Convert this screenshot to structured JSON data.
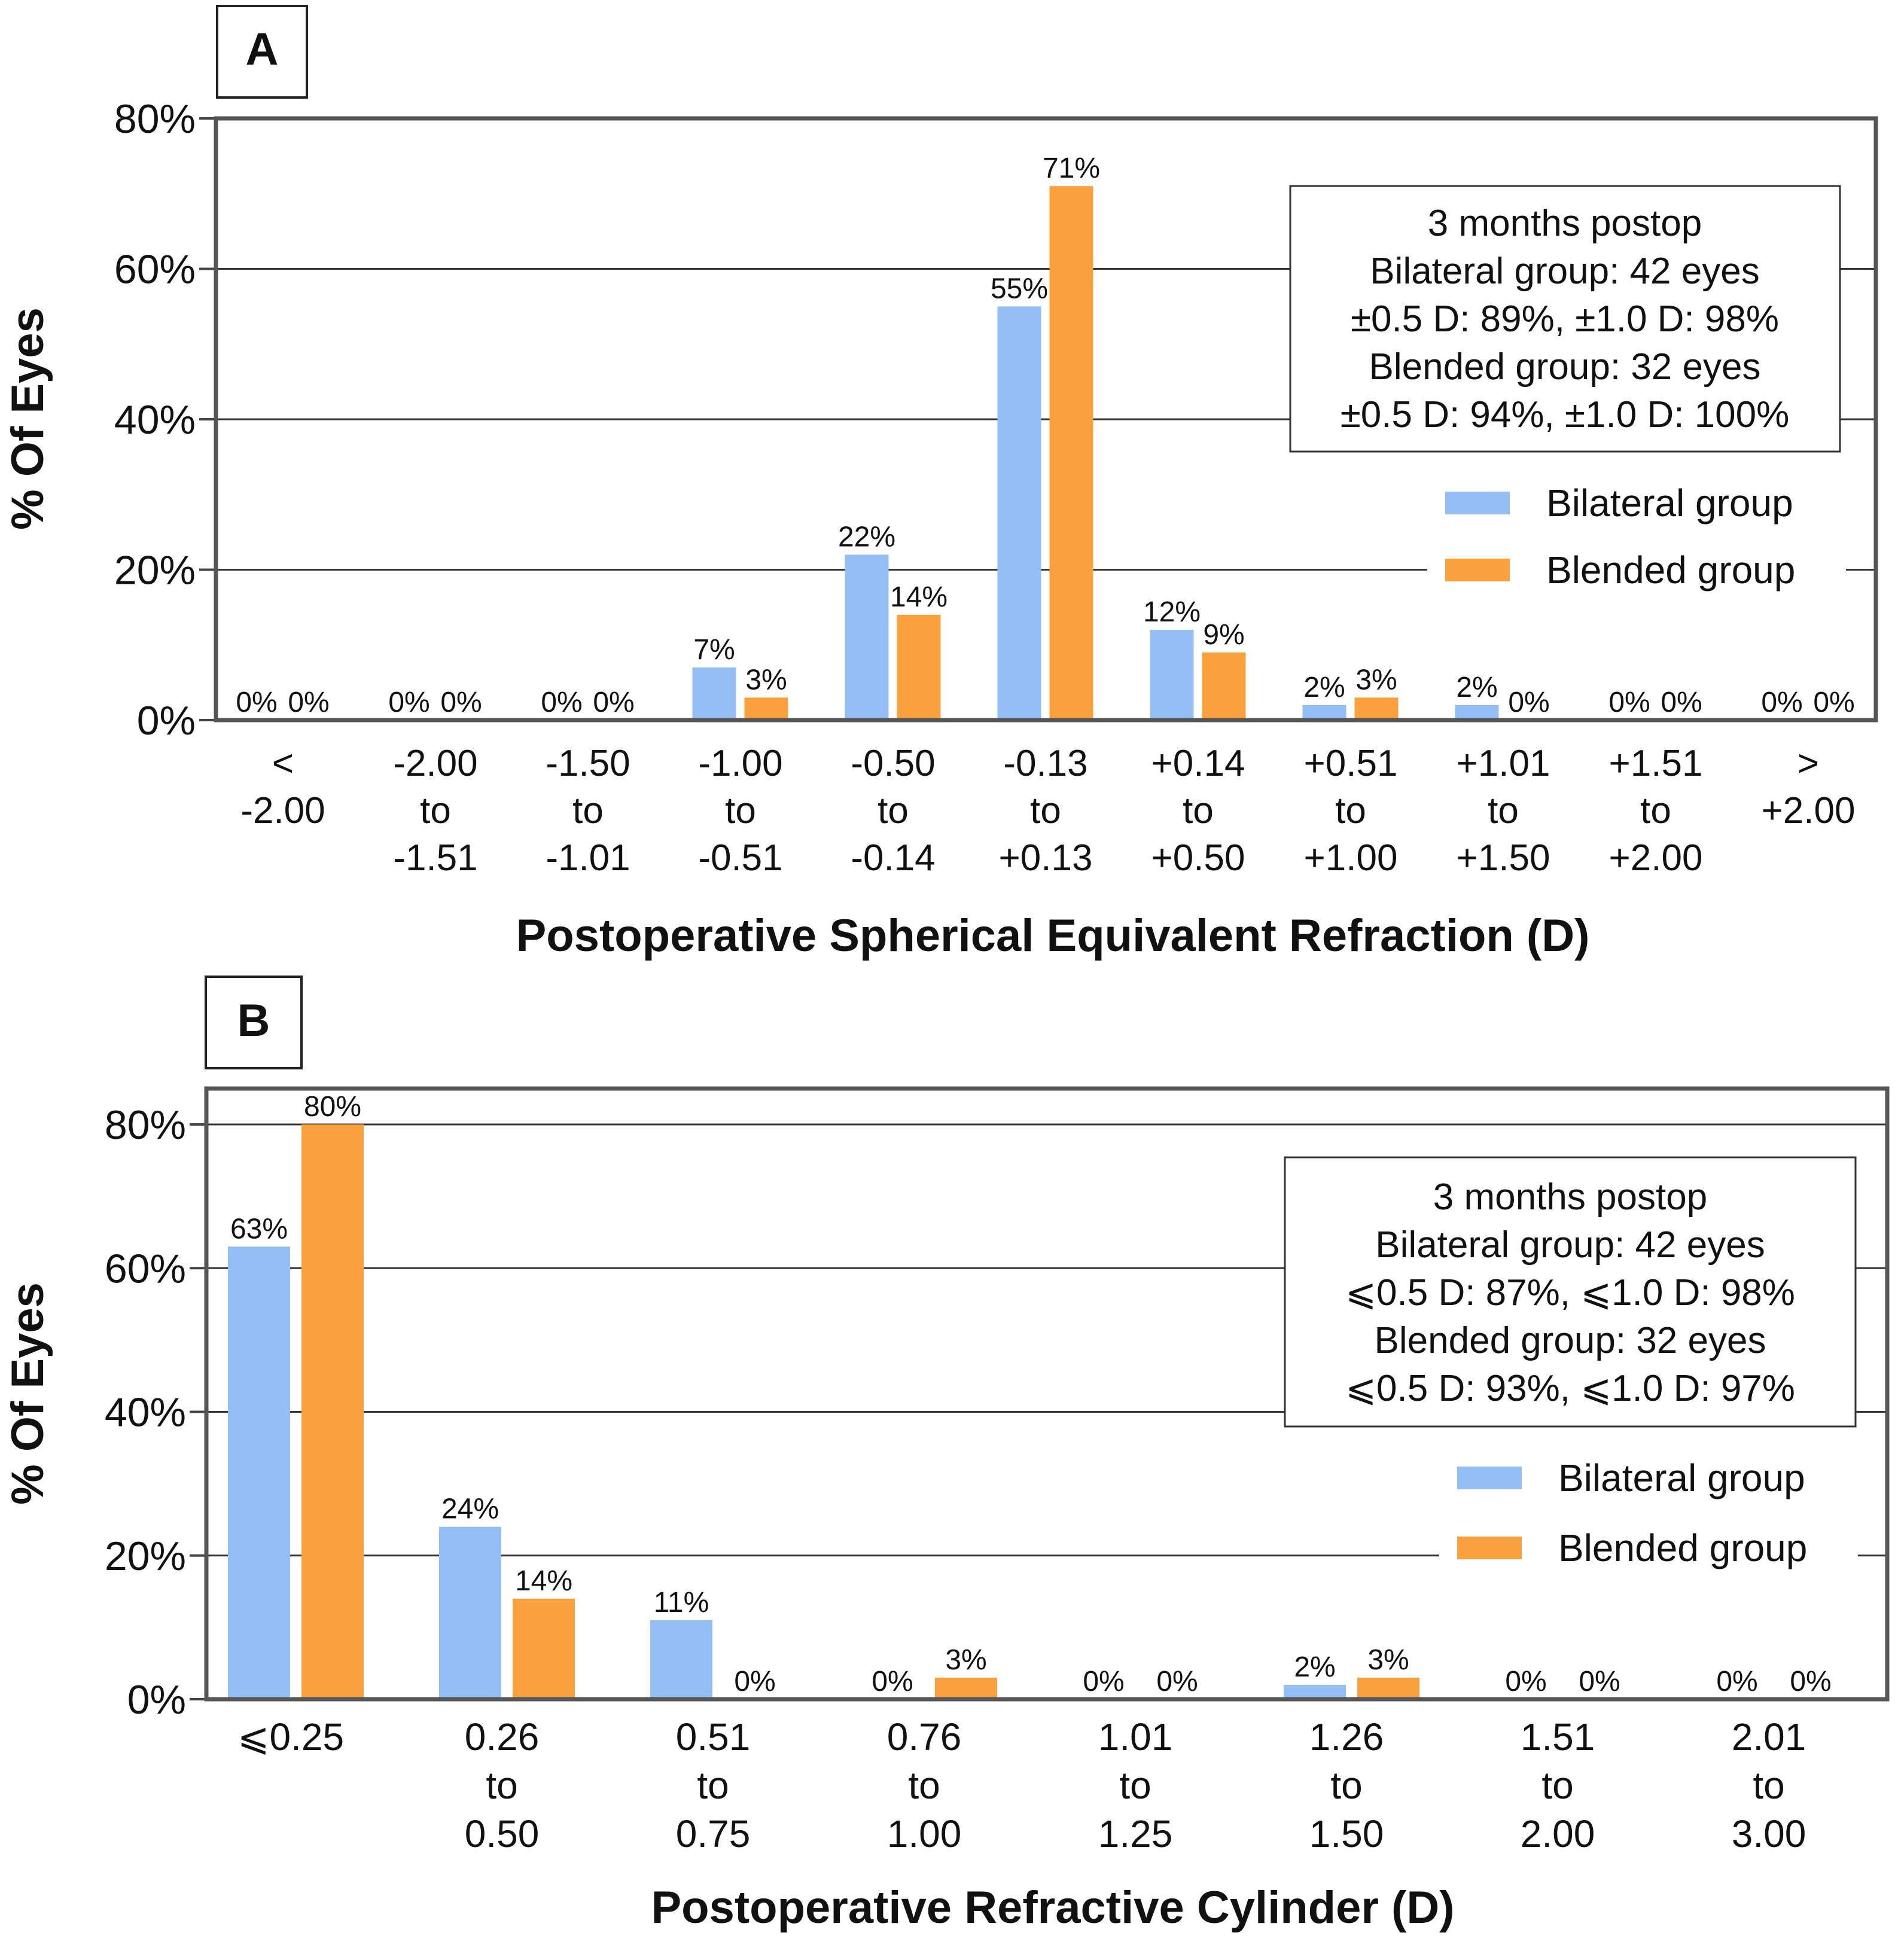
{
  "chart_data": [
    {
      "panel": "A",
      "type": "bar",
      "xlabel": "Postoperative Spherical Equivalent Refraction (D)",
      "ylabel": "% Of Eyes",
      "ylim": [
        0,
        80
      ],
      "yticks": [
        "0%",
        "20%",
        "40%",
        "60%",
        "80%"
      ],
      "grid": true,
      "legend_position": "right",
      "categories": [
        [
          "<",
          "-2.00"
        ],
        [
          "-2.00",
          "to",
          "-1.51"
        ],
        [
          "-1.50",
          "to",
          "-1.01"
        ],
        [
          "-1.00",
          "to",
          "-0.51"
        ],
        [
          "-0.50",
          "to",
          "-0.14"
        ],
        [
          "-0.13",
          "to",
          "+0.13"
        ],
        [
          "+0.14",
          "to",
          "+0.50"
        ],
        [
          "+0.51",
          "to",
          "+1.00"
        ],
        [
          "+1.01",
          "to",
          "+1.50"
        ],
        [
          "+1.51",
          "to",
          "+2.00"
        ],
        [
          ">",
          "+2.00"
        ]
      ],
      "series": [
        {
          "name": "Bilateral group",
          "color": "#93bff5",
          "values": [
            0,
            0,
            0,
            7,
            22,
            55,
            12,
            2,
            2,
            0,
            0
          ],
          "labels": [
            "0%",
            "0%",
            "0%",
            "7%",
            "22%",
            "55%",
            "12%",
            "2%",
            "2%",
            "0%",
            "0%"
          ]
        },
        {
          "name": "Blended group",
          "color": "#f9a03f",
          "values": [
            0,
            0,
            0,
            3,
            14,
            71,
            9,
            3,
            0,
            0,
            0
          ],
          "labels": [
            "0%",
            "0%",
            "0%",
            "3%",
            "14%",
            "71%",
            "9%",
            "3%",
            "0%",
            "0%",
            "0%"
          ]
        }
      ],
      "annotation": [
        "3 months postop",
        "Bilateral group: 42 eyes",
        "±0.5 D: 89%, ±1.0 D: 98%",
        "Blended group: 32 eyes",
        "±0.5 D: 94%, ±1.0 D: 100%"
      ]
    },
    {
      "panel": "B",
      "type": "bar",
      "xlabel": "Postoperative Refractive Cylinder (D)",
      "ylabel": "% Of Eyes",
      "ylim": [
        0,
        85
      ],
      "yticks": [
        "0%",
        "20%",
        "40%",
        "60%",
        "80%"
      ],
      "grid": true,
      "legend_position": "right",
      "categories": [
        [
          "⩽0.25"
        ],
        [
          "0.26",
          "to",
          "0.50"
        ],
        [
          "0.51",
          "to",
          "0.75"
        ],
        [
          "0.76",
          "to",
          "1.00"
        ],
        [
          "1.01",
          "to",
          "1.25"
        ],
        [
          "1.26",
          "to",
          "1.50"
        ],
        [
          "1.51",
          "to",
          "2.00"
        ],
        [
          "2.01",
          "to",
          "3.00"
        ]
      ],
      "series": [
        {
          "name": "Bilateral group",
          "color": "#93bff5",
          "values": [
            63,
            24,
            11,
            0,
            0,
            2,
            0,
            0
          ],
          "labels": [
            "63%",
            "24%",
            "11%",
            "0%",
            "0%",
            "2%",
            "0%",
            "0%"
          ]
        },
        {
          "name": "Blended group",
          "color": "#f9a03f",
          "values": [
            80,
            14,
            0,
            3,
            0,
            3,
            0,
            0
          ],
          "labels": [
            "80%",
            "14%",
            "0%",
            "3%",
            "0%",
            "3%",
            "0%",
            "0%"
          ]
        }
      ],
      "annotation": [
        "3 months postop",
        "Bilateral group: 42 eyes",
        "⩽0.5 D: 87%, ⩽1.0 D: 98%",
        "Blended group: 32 eyes",
        "⩽0.5 D: 93%, ⩽1.0 D: 97%"
      ]
    }
  ]
}
